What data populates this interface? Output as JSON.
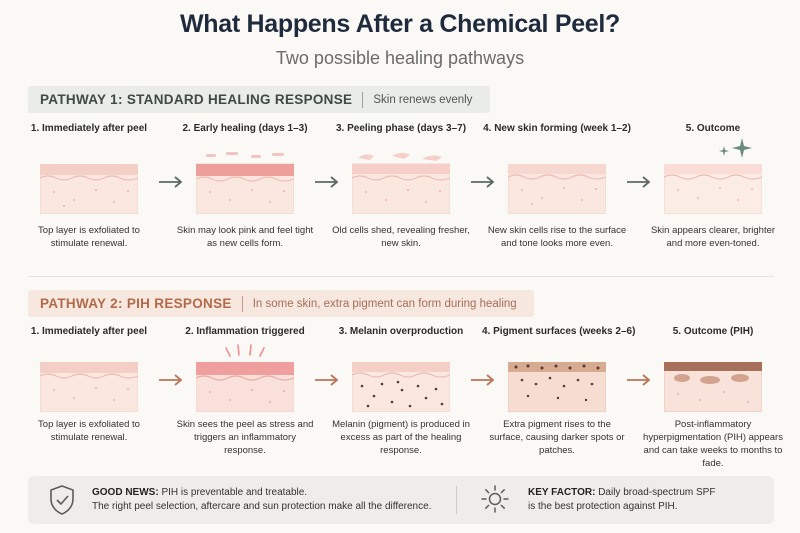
{
  "title": "What Happens After a Chemical Peel?",
  "subtitle": "Two possible healing pathways",
  "pathway1": {
    "title": "PATHWAY 1:  STANDARD HEALING RESPONSE",
    "note": "Skin renews evenly",
    "steps": [
      {
        "label": "1. Immediately after peel",
        "desc": "Top layer is exfoliated to stimulate renewal."
      },
      {
        "label": "2. Early healing (days 1–3)",
        "desc": "Skin may look pink and feel tight as new cells form."
      },
      {
        "label": "3. Peeling phase (days 3–7)",
        "desc": "Old cells shed, revealing fresher, new skin."
      },
      {
        "label": "4. New skin forming (week 1–2)",
        "desc": "New skin cells rise to the surface and tone looks more even."
      },
      {
        "label": "5. Outcome",
        "desc": "Skin appears clearer, brighter and more even-toned."
      }
    ]
  },
  "pathway2": {
    "title": "PATHWAY 2:  PIH RESPONSE",
    "note": "In some skin, extra pigment can form during healing",
    "steps": [
      {
        "label": "1. Immediately after peel",
        "desc": "Top layer is exfoliated to stimulate renewal."
      },
      {
        "label": "2. Inflammation triggered",
        "desc": "Skin sees the peel as stress and triggers an inflammatory response."
      },
      {
        "label": "3. Melanin overproduction",
        "desc": "Melanin (pigment) is produced in excess as part of the healing response."
      },
      {
        "label": "4. Pigment surfaces (weeks 2–6)",
        "desc": "Extra pigment rises to the surface, causing darker spots or patches."
      },
      {
        "label": "5. Outcome (PIH)",
        "desc": "Post-inflammatory hyperpigmentation (PIH) appears and can take weeks to months to fade."
      }
    ]
  },
  "footer": {
    "good_news_label": "GOOD NEWS:",
    "good_news_text": "PIH is preventable and treatable.",
    "good_news_sub": "The right peel selection, aftercare and sun protection make all the difference.",
    "key_factor_label": "KEY FACTOR:",
    "key_factor_text": "Daily broad-spectrum SPF",
    "key_factor_sub": "is the best protection against PIH."
  },
  "icons": {
    "shield": "shield-check-icon",
    "sun": "sun-icon",
    "sparkle": "sparkle-icon",
    "arrow": "arrow-right-icon"
  },
  "colors": {
    "pathway1_accent": "#3f4a42",
    "pathway2_accent": "#b26a4a",
    "skin_top": "#f3c9c3",
    "skin_body": "#fae8e0",
    "pigment": "#5a3a2e"
  }
}
